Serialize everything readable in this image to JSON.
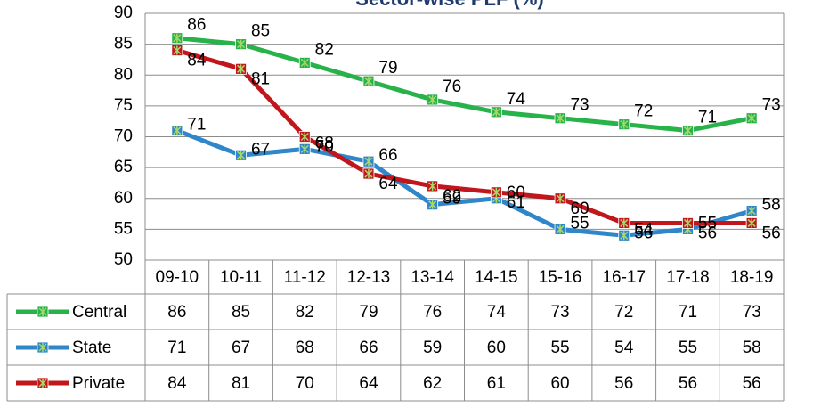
{
  "chart_data": {
    "type": "line",
    "title": "Sector-wise PLF (%)",
    "categories": [
      "09-10",
      "10-11",
      "11-12",
      "12-13",
      "13-14",
      "14-15",
      "15-16",
      "16-17",
      "17-18",
      "18-19"
    ],
    "series": [
      {
        "name": "Central",
        "color": "#27b24a",
        "values": [
          86,
          85,
          82,
          79,
          76,
          74,
          73,
          72,
          71,
          73
        ]
      },
      {
        "name": "State",
        "color": "#2f86c9",
        "values": [
          71,
          67,
          68,
          66,
          59,
          60,
          55,
          54,
          55,
          58
        ]
      },
      {
        "name": "Private",
        "color": "#c1161c",
        "values": [
          84,
          81,
          70,
          64,
          62,
          61,
          60,
          56,
          56,
          56
        ]
      }
    ],
    "ylim": [
      50,
      90
    ],
    "yticks": [
      50,
      55,
      60,
      65,
      70,
      75,
      80,
      85,
      90
    ],
    "grid": true
  }
}
